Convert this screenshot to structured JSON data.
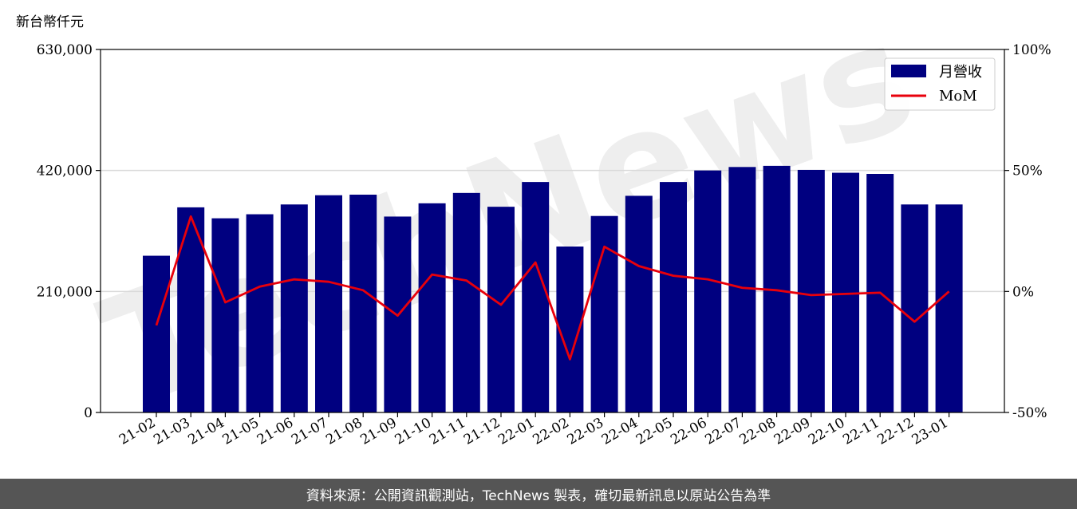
{
  "unit_label": "新台幣仟元",
  "watermark": "TechNews",
  "footer": "資料來源：公開資訊觀測站，TechNews 製表，確切最新訊息以原站公告為準",
  "colors": {
    "bar": "#000080",
    "line": "#e8000b",
    "grid": "#d9d9d9",
    "watermark": "#eeeeee"
  },
  "chart_data": {
    "type": "bar",
    "categories": [
      "21-02",
      "21-03",
      "21-04",
      "21-05",
      "21-06",
      "21-07",
      "21-08",
      "21-09",
      "21-10",
      "21-11",
      "21-12",
      "22-01",
      "22-02",
      "22-03",
      "22-04",
      "22-05",
      "22-06",
      "22-07",
      "22-08",
      "22-09",
      "22-10",
      "22-11",
      "22-12",
      "23-01"
    ],
    "series": [
      {
        "name": "月營收",
        "type": "bar",
        "axis": "left",
        "values": [
          272000,
          356000,
          337000,
          344000,
          361000,
          377000,
          378000,
          340000,
          363000,
          381000,
          357000,
          400000,
          288000,
          341000,
          376000,
          400000,
          420000,
          426000,
          428000,
          421000,
          416000,
          414000,
          361000,
          361000
        ]
      },
      {
        "name": "MoM",
        "type": "line",
        "axis": "right",
        "unit": "%",
        "values": [
          -14.0,
          31.0,
          -4.5,
          2.0,
          5.0,
          4.0,
          0.5,
          -10.0,
          7.0,
          4.5,
          -5.5,
          12.0,
          -28.0,
          18.5,
          10.5,
          6.5,
          5.0,
          1.5,
          0.5,
          -1.5,
          -1.0,
          -0.5,
          -12.5,
          0.0
        ]
      }
    ],
    "ylim_left": [
      0,
      630000
    ],
    "yticks_left": [
      "0",
      "210,000",
      "420,000",
      "630,000"
    ],
    "ylim_right": [
      -50,
      100
    ],
    "yticks_right": [
      "-50%",
      "0%",
      "50%",
      "100%"
    ],
    "grid": "horizontal",
    "legend": "top-right"
  }
}
